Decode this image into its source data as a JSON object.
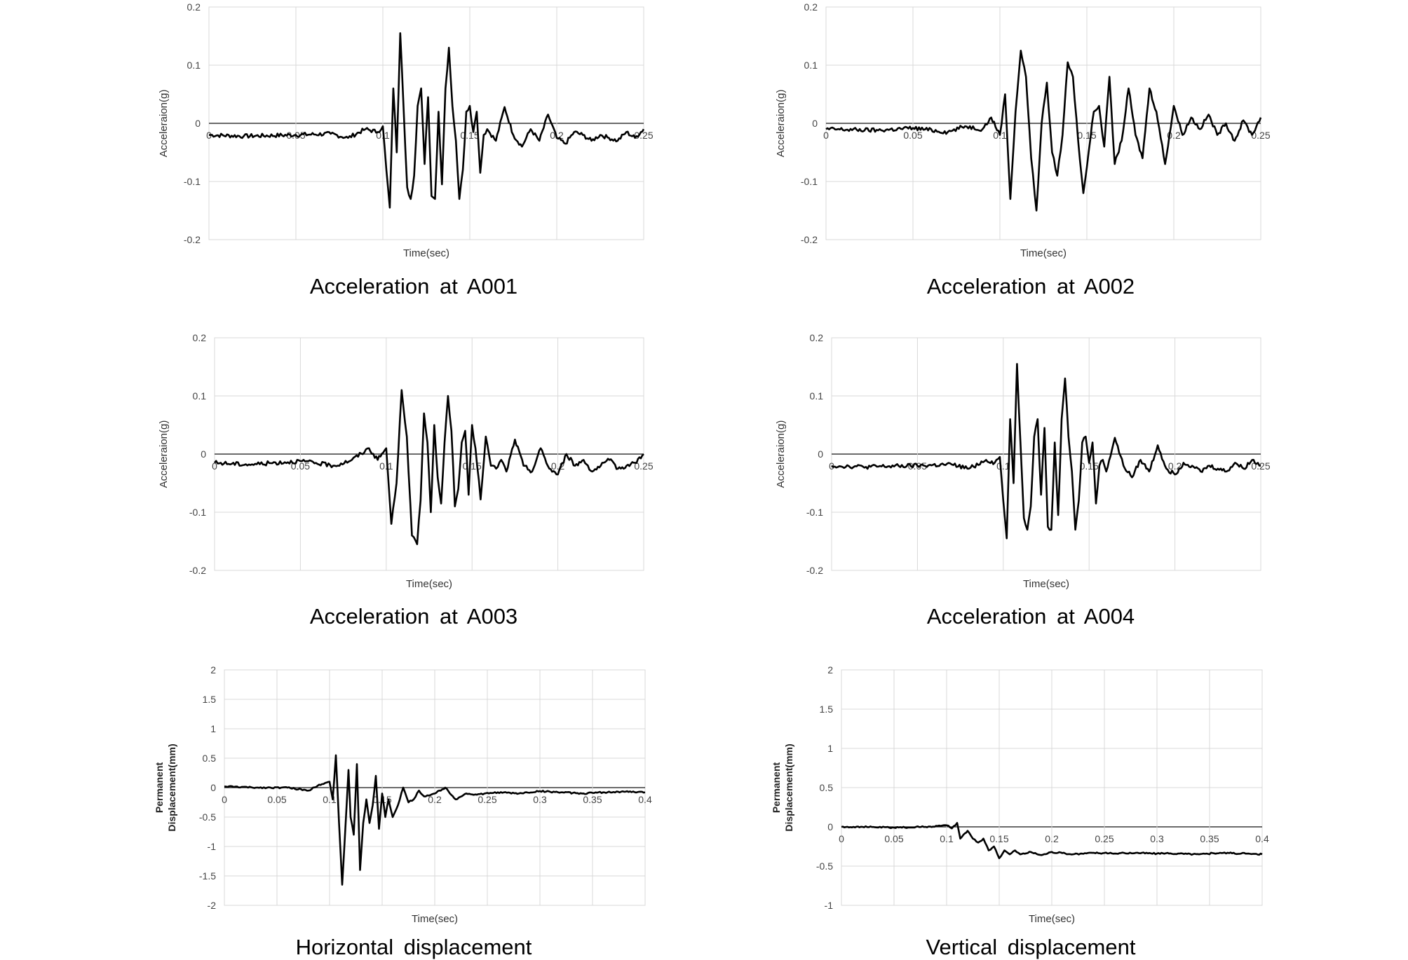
{
  "chart_data": [
    {
      "type": "line",
      "caption": "Acceleration at A001",
      "xlabel": "Time(sec)",
      "ylabel": "Acceleraion(g)",
      "xlim": [
        0,
        0.25
      ],
      "ylim": [
        -0.2,
        0.2
      ],
      "xticks": [
        "0",
        "0.05",
        "0.1",
        "0.15",
        "0.2",
        "0.25"
      ],
      "yticks": [
        "0.2",
        "0.1",
        "0",
        "-0.1",
        "-0.2"
      ],
      "grid": true,
      "series": [
        {
          "x": [
            0,
            0.02,
            0.05,
            0.07,
            0.08,
            0.09,
            0.097,
            0.1,
            0.102,
            0.104,
            0.106,
            0.108,
            0.11,
            0.112,
            0.114,
            0.116,
            0.118,
            0.12,
            0.122,
            0.124,
            0.126,
            0.128,
            0.13,
            0.132,
            0.134,
            0.136,
            0.138,
            0.14,
            0.142,
            0.144,
            0.146,
            0.148,
            0.15,
            0.152,
            0.154,
            0.156,
            0.158,
            0.16,
            0.165,
            0.17,
            0.175,
            0.18,
            0.185,
            0.19,
            0.195,
            0.2,
            0.205,
            0.21,
            0.215,
            0.22,
            0.225,
            0.23,
            0.235,
            0.24,
            0.245,
            0.25
          ],
          "y": [
            -0.02,
            -0.022,
            -0.02,
            -0.018,
            -0.025,
            -0.01,
            -0.015,
            -0.005,
            -0.08,
            -0.145,
            0.06,
            -0.05,
            0.155,
            0.02,
            -0.11,
            -0.13,
            -0.09,
            0.03,
            0.06,
            -0.07,
            0.045,
            -0.125,
            -0.13,
            0.02,
            -0.105,
            0.06,
            0.13,
            0.03,
            -0.03,
            -0.13,
            -0.08,
            0.02,
            0.03,
            -0.015,
            0.02,
            -0.085,
            -0.02,
            -0.01,
            -0.03,
            0.028,
            -0.02,
            -0.04,
            -0.01,
            -0.03,
            0.015,
            -0.025,
            -0.035,
            -0.015,
            -0.02,
            -0.03,
            -0.02,
            -0.025,
            -0.03,
            -0.015,
            -0.025,
            -0.01
          ]
        }
      ]
    },
    {
      "type": "line",
      "caption": "Acceleration at A002",
      "xlabel": "Time(sec)",
      "ylabel": "Acceleraion(g)",
      "xlim": [
        0,
        0.25
      ],
      "ylim": [
        -0.2,
        0.2
      ],
      "xticks": [
        "0",
        "0.05",
        "0.1",
        "0.15",
        "0.2",
        "0.25"
      ],
      "yticks": [
        "0.2",
        "0.1",
        "0",
        "-0.1",
        "-0.2"
      ],
      "grid": true,
      "series": [
        {
          "x": [
            0,
            0.03,
            0.05,
            0.07,
            0.08,
            0.09,
            0.095,
            0.1,
            0.103,
            0.106,
            0.109,
            0.112,
            0.115,
            0.118,
            0.121,
            0.124,
            0.127,
            0.13,
            0.133,
            0.136,
            0.139,
            0.142,
            0.145,
            0.148,
            0.151,
            0.154,
            0.157,
            0.16,
            0.163,
            0.166,
            0.17,
            0.174,
            0.178,
            0.182,
            0.186,
            0.19,
            0.195,
            0.2,
            0.205,
            0.21,
            0.215,
            0.22,
            0.225,
            0.23,
            0.235,
            0.24,
            0.245,
            0.25
          ],
          "y": [
            -0.01,
            -0.012,
            -0.008,
            -0.015,
            -0.005,
            -0.01,
            0.01,
            -0.02,
            0.05,
            -0.13,
            0.02,
            0.125,
            0.08,
            -0.06,
            -0.15,
            0.0,
            0.07,
            -0.05,
            -0.09,
            -0.02,
            0.105,
            0.08,
            -0.03,
            -0.12,
            -0.05,
            0.02,
            0.03,
            -0.04,
            0.08,
            -0.07,
            -0.03,
            0.06,
            -0.02,
            -0.06,
            0.06,
            0.02,
            -0.07,
            0.03,
            -0.02,
            0.01,
            -0.01,
            0.015,
            -0.02,
            0.0,
            -0.03,
            0.005,
            -0.02,
            0.01
          ]
        }
      ]
    },
    {
      "type": "line",
      "caption": "Acceleration at A003",
      "xlabel": "Time(sec)",
      "ylabel": "Acceleraion(g)",
      "xlim": [
        0,
        0.25
      ],
      "ylim": [
        -0.2,
        0.2
      ],
      "xticks": [
        "0",
        "0.05",
        "0.1",
        "0.15",
        "0.2",
        "0.25"
      ],
      "yticks": [
        "0.2",
        "0.1",
        "0",
        "-0.1",
        "-0.2"
      ],
      "grid": true,
      "series": [
        {
          "x": [
            0,
            0.02,
            0.05,
            0.07,
            0.08,
            0.09,
            0.095,
            0.1,
            0.103,
            0.106,
            0.109,
            0.112,
            0.115,
            0.118,
            0.12,
            0.122,
            0.124,
            0.126,
            0.128,
            0.13,
            0.132,
            0.134,
            0.136,
            0.138,
            0.14,
            0.142,
            0.144,
            0.146,
            0.148,
            0.15,
            0.152,
            0.155,
            0.158,
            0.161,
            0.164,
            0.167,
            0.17,
            0.175,
            0.18,
            0.185,
            0.19,
            0.195,
            0.2,
            0.205,
            0.21,
            0.215,
            0.22,
            0.225,
            0.23,
            0.235,
            0.24,
            0.245,
            0.25
          ],
          "y": [
            -0.015,
            -0.018,
            -0.012,
            -0.02,
            -0.01,
            0.01,
            -0.01,
            0.01,
            -0.12,
            -0.05,
            0.11,
            0.03,
            -0.14,
            -0.155,
            -0.08,
            0.07,
            0.02,
            -0.1,
            0.05,
            -0.04,
            -0.085,
            0.02,
            0.1,
            0.04,
            -0.09,
            -0.06,
            0.02,
            0.04,
            -0.07,
            0.05,
            0.01,
            -0.078,
            0.03,
            -0.02,
            -0.025,
            -0.01,
            -0.03,
            0.025,
            -0.02,
            -0.03,
            0.01,
            -0.025,
            -0.035,
            0.0,
            -0.02,
            -0.01,
            -0.03,
            -0.02,
            -0.01,
            -0.025,
            -0.02,
            -0.015,
            0.0
          ]
        }
      ]
    },
    {
      "type": "line",
      "caption": "Acceleration at A004",
      "xlabel": "Time(sec)",
      "ylabel": "Acceleraion(g)",
      "xlim": [
        0,
        0.25
      ],
      "ylim": [
        -0.2,
        0.2
      ],
      "xticks": [
        "0",
        "0.05",
        "0.1",
        "0.15",
        "0.2",
        "0.25"
      ],
      "yticks": [
        "0.2",
        "0.1",
        "0",
        "-0.1",
        "-0.2"
      ],
      "grid": true,
      "series": [
        {
          "x": [
            0,
            0.02,
            0.05,
            0.07,
            0.08,
            0.09,
            0.095,
            0.098,
            0.1,
            0.102,
            0.104,
            0.106,
            0.108,
            0.11,
            0.112,
            0.114,
            0.116,
            0.118,
            0.12,
            0.122,
            0.124,
            0.126,
            0.128,
            0.13,
            0.132,
            0.134,
            0.136,
            0.138,
            0.14,
            0.142,
            0.144,
            0.146,
            0.148,
            0.15,
            0.152,
            0.154,
            0.156,
            0.158,
            0.16,
            0.165,
            0.17,
            0.175,
            0.18,
            0.185,
            0.19,
            0.195,
            0.2,
            0.205,
            0.21,
            0.215,
            0.22,
            0.225,
            0.23,
            0.235,
            0.24,
            0.245,
            0.25
          ],
          "y": [
            -0.02,
            -0.022,
            -0.02,
            -0.018,
            -0.025,
            -0.01,
            -0.015,
            -0.005,
            -0.08,
            -0.145,
            0.06,
            -0.05,
            0.155,
            0.02,
            -0.11,
            -0.13,
            -0.09,
            0.03,
            0.06,
            -0.07,
            0.045,
            -0.125,
            -0.13,
            0.02,
            -0.105,
            0.06,
            0.13,
            0.03,
            -0.03,
            -0.13,
            -0.08,
            0.02,
            0.03,
            -0.015,
            0.02,
            -0.085,
            -0.02,
            -0.01,
            -0.03,
            0.028,
            -0.02,
            -0.04,
            -0.01,
            -0.03,
            0.015,
            -0.025,
            -0.035,
            -0.015,
            -0.02,
            -0.03,
            -0.02,
            -0.025,
            -0.03,
            -0.015,
            -0.025,
            -0.01,
            -0.02
          ]
        }
      ]
    },
    {
      "type": "line",
      "caption": "Horizontal displacement",
      "xlabel": "Time(sec)",
      "ylabel": [
        "Permanent",
        "Displacement(mm)"
      ],
      "xlim": [
        0,
        0.4
      ],
      "ylim": [
        -2,
        2
      ],
      "xticks": [
        "0",
        "0.05",
        "0.1",
        "0.15",
        "0.2",
        "0.25",
        "0.3",
        "0.35",
        "0.4"
      ],
      "yticks": [
        "2",
        "1.5",
        "1",
        "0.5",
        "0",
        "-0.5",
        "-1",
        "-1.5",
        "-2"
      ],
      "grid": true,
      "series": [
        {
          "x": [
            0,
            0.03,
            0.06,
            0.08,
            0.09,
            0.1,
            0.103,
            0.106,
            0.109,
            0.112,
            0.115,
            0.118,
            0.12,
            0.123,
            0.126,
            0.129,
            0.132,
            0.135,
            0.138,
            0.141,
            0.144,
            0.147,
            0.15,
            0.153,
            0.156,
            0.16,
            0.165,
            0.17,
            0.175,
            0.18,
            0.185,
            0.19,
            0.2,
            0.21,
            0.22,
            0.23,
            0.24,
            0.26,
            0.28,
            0.3,
            0.32,
            0.34,
            0.36,
            0.38,
            0.4
          ],
          "y": [
            0.02,
            0.0,
            0.0,
            -0.05,
            0.05,
            0.1,
            -0.2,
            0.55,
            -0.6,
            -1.65,
            -0.7,
            0.3,
            -0.5,
            -0.8,
            0.4,
            -1.4,
            -0.6,
            -0.2,
            -0.6,
            -0.3,
            0.2,
            -0.7,
            -0.1,
            -0.5,
            -0.2,
            -0.5,
            -0.3,
            0.0,
            -0.25,
            -0.2,
            -0.05,
            -0.15,
            -0.1,
            0.0,
            -0.2,
            -0.1,
            -0.12,
            -0.08,
            -0.1,
            -0.06,
            -0.08,
            -0.1,
            -0.08,
            -0.07,
            -0.08
          ]
        }
      ]
    },
    {
      "type": "line",
      "caption": "Vertical displacement",
      "xlabel": "Time(sec)",
      "ylabel": [
        "Permanent",
        "Displacement(mm)"
      ],
      "xlim": [
        0,
        0.4
      ],
      "ylim": [
        -1,
        2
      ],
      "xticks": [
        "0",
        "0.05",
        "0.1",
        "0.15",
        "0.2",
        "0.25",
        "0.3",
        "0.35",
        "0.4"
      ],
      "yticks": [
        "2",
        "1.5",
        "1",
        "0.5",
        "0",
        "-0.5",
        "-1"
      ],
      "grid": true,
      "series": [
        {
          "x": [
            0,
            0.02,
            0.05,
            0.08,
            0.1,
            0.105,
            0.11,
            0.113,
            0.116,
            0.12,
            0.125,
            0.13,
            0.135,
            0.14,
            0.145,
            0.15,
            0.155,
            0.16,
            0.165,
            0.17,
            0.18,
            0.19,
            0.2,
            0.22,
            0.24,
            0.26,
            0.28,
            0.3,
            0.32,
            0.34,
            0.36,
            0.38,
            0.4
          ],
          "y": [
            0.0,
            0.0,
            -0.01,
            0.0,
            0.02,
            -0.02,
            0.05,
            -0.15,
            -0.1,
            -0.05,
            -0.15,
            -0.2,
            -0.15,
            -0.3,
            -0.25,
            -0.4,
            -0.3,
            -0.35,
            -0.3,
            -0.35,
            -0.32,
            -0.36,
            -0.32,
            -0.35,
            -0.33,
            -0.34,
            -0.33,
            -0.34,
            -0.34,
            -0.35,
            -0.33,
            -0.34,
            -0.35
          ]
        }
      ]
    }
  ]
}
